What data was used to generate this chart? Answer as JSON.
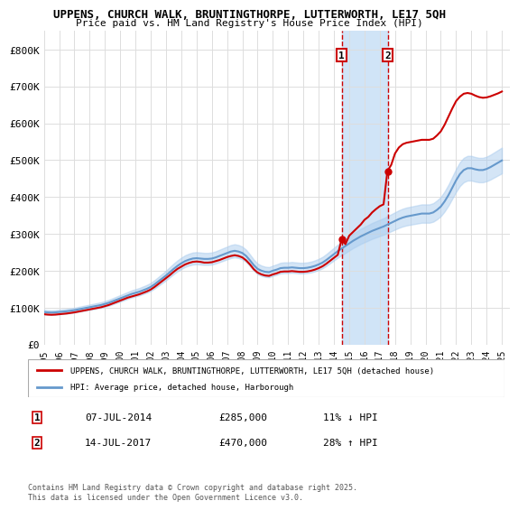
{
  "title_line1": "UPPENS, CHURCH WALK, BRUNTINGTHORPE, LUTTERWORTH, LE17 5QH",
  "title_line2": "Price paid vs. HM Land Registry's House Price Index (HPI)",
  "ylabel_ticks": [
    "£0",
    "£100K",
    "£200K",
    "£300K",
    "£400K",
    "£500K",
    "£600K",
    "£700K",
    "£800K"
  ],
  "ytick_values": [
    0,
    100000,
    200000,
    300000,
    400000,
    500000,
    600000,
    700000,
    800000
  ],
  "ylim": [
    0,
    850000
  ],
  "xlim_start": 1995.0,
  "xlim_end": 2025.5,
  "xticks": [
    1995,
    1996,
    1997,
    1998,
    1999,
    2000,
    2001,
    2002,
    2003,
    2004,
    2005,
    2006,
    2007,
    2008,
    2009,
    2010,
    2011,
    2012,
    2013,
    2014,
    2015,
    2016,
    2017,
    2018,
    2019,
    2020,
    2021,
    2022,
    2023,
    2024,
    2025
  ],
  "transaction1_date": "07-JUL-2014",
  "transaction1_x": 2014.52,
  "transaction1_price": 285000,
  "transaction1_hpi": "11% ↓ HPI",
  "transaction2_date": "14-JUL-2017",
  "transaction2_x": 2017.53,
  "transaction2_price": 470000,
  "transaction2_hpi": "28% ↑ HPI",
  "legend_label_red": "UPPENS, CHURCH WALK, BRUNTINGTHORPE, LUTTERWORTH, LE17 5QH (detached house)",
  "legend_label_blue": "HPI: Average price, detached house, Harborough",
  "footnote": "Contains HM Land Registry data © Crown copyright and database right 2025.\nThis data is licensed under the Open Government Licence v3.0.",
  "red_color": "#cc0000",
  "blue_color": "#6699cc",
  "blue_fill_color": "#aaccee",
  "shade_color": "#d0e4f7",
  "background_color": "#ffffff",
  "grid_color": "#dddddd",
  "hpi_data_x": [
    1995.0,
    1995.25,
    1995.5,
    1995.75,
    1996.0,
    1996.25,
    1996.5,
    1996.75,
    1997.0,
    1997.25,
    1997.5,
    1997.75,
    1998.0,
    1998.25,
    1998.5,
    1998.75,
    1999.0,
    1999.25,
    1999.5,
    1999.75,
    2000.0,
    2000.25,
    2000.5,
    2000.75,
    2001.0,
    2001.25,
    2001.5,
    2001.75,
    2002.0,
    2002.25,
    2002.5,
    2002.75,
    2003.0,
    2003.25,
    2003.5,
    2003.75,
    2004.0,
    2004.25,
    2004.5,
    2004.75,
    2005.0,
    2005.25,
    2005.5,
    2005.75,
    2006.0,
    2006.25,
    2006.5,
    2006.75,
    2007.0,
    2007.25,
    2007.5,
    2007.75,
    2008.0,
    2008.25,
    2008.5,
    2008.75,
    2009.0,
    2009.25,
    2009.5,
    2009.75,
    2010.0,
    2010.25,
    2010.5,
    2010.75,
    2011.0,
    2011.25,
    2011.5,
    2011.75,
    2012.0,
    2012.25,
    2012.5,
    2012.75,
    2013.0,
    2013.25,
    2013.5,
    2013.75,
    2014.0,
    2014.25,
    2014.5,
    2014.75,
    2015.0,
    2015.25,
    2015.5,
    2015.75,
    2016.0,
    2016.25,
    2016.5,
    2016.75,
    2017.0,
    2017.25,
    2017.5,
    2017.75,
    2018.0,
    2018.25,
    2018.5,
    2018.75,
    2019.0,
    2019.25,
    2019.5,
    2019.75,
    2020.0,
    2020.25,
    2020.5,
    2020.75,
    2021.0,
    2021.25,
    2021.5,
    2021.75,
    2022.0,
    2022.25,
    2022.5,
    2022.75,
    2023.0,
    2023.25,
    2023.5,
    2023.75,
    2024.0,
    2024.25,
    2024.5,
    2024.75,
    2025.0
  ],
  "hpi_data_y": [
    88000,
    87000,
    86500,
    87000,
    88000,
    89000,
    90000,
    91500,
    93000,
    95000,
    97000,
    99000,
    101000,
    103000,
    105000,
    107000,
    110000,
    113000,
    117000,
    121000,
    125000,
    129000,
    133000,
    137000,
    140000,
    143000,
    147000,
    151000,
    156000,
    163000,
    171000,
    179000,
    187000,
    196000,
    205000,
    213000,
    220000,
    226000,
    230000,
    233000,
    234000,
    233000,
    232000,
    232000,
    233000,
    236000,
    240000,
    244000,
    248000,
    252000,
    254000,
    252000,
    248000,
    240000,
    228000,
    215000,
    205000,
    200000,
    197000,
    196000,
    200000,
    203000,
    207000,
    208000,
    208000,
    209000,
    208000,
    207000,
    207000,
    208000,
    210000,
    213000,
    217000,
    222000,
    229000,
    237000,
    245000,
    253000,
    260000,
    267000,
    274000,
    281000,
    287000,
    293000,
    298000,
    303000,
    308000,
    312000,
    316000,
    320000,
    325000,
    330000,
    335000,
    340000,
    344000,
    347000,
    349000,
    351000,
    353000,
    355000,
    355000,
    355000,
    358000,
    365000,
    374000,
    388000,
    405000,
    425000,
    445000,
    462000,
    473000,
    478000,
    478000,
    475000,
    473000,
    473000,
    476000,
    481000,
    487000,
    493000,
    499000
  ],
  "red_data_x": [
    1995.0,
    1995.25,
    1995.5,
    1995.75,
    1996.0,
    1996.25,
    1996.5,
    1996.75,
    1997.0,
    1997.25,
    1997.5,
    1997.75,
    1998.0,
    1998.25,
    1998.5,
    1998.75,
    1999.0,
    1999.25,
    1999.5,
    1999.75,
    2000.0,
    2000.25,
    2000.5,
    2000.75,
    2001.0,
    2001.25,
    2001.5,
    2001.75,
    2002.0,
    2002.25,
    2002.5,
    2002.75,
    2003.0,
    2003.25,
    2003.5,
    2003.75,
    2004.0,
    2004.25,
    2004.5,
    2004.75,
    2005.0,
    2005.25,
    2005.5,
    2005.75,
    2006.0,
    2006.25,
    2006.5,
    2006.75,
    2007.0,
    2007.25,
    2007.5,
    2007.75,
    2008.0,
    2008.25,
    2008.5,
    2008.75,
    2009.0,
    2009.25,
    2009.5,
    2009.75,
    2010.0,
    2010.25,
    2010.5,
    2010.75,
    2011.0,
    2011.25,
    2011.5,
    2011.75,
    2012.0,
    2012.25,
    2012.5,
    2012.75,
    2013.0,
    2013.25,
    2013.5,
    2013.75,
    2014.0,
    2014.25,
    2014.5,
    2014.75,
    2015.0,
    2015.25,
    2015.5,
    2015.75,
    2016.0,
    2016.25,
    2016.5,
    2016.75,
    2017.0,
    2017.25,
    2017.5,
    2017.75,
    2018.0,
    2018.25,
    2018.5,
    2018.75,
    2019.0,
    2019.25,
    2019.5,
    2019.75,
    2020.0,
    2020.25,
    2020.5,
    2020.75,
    2021.0,
    2021.25,
    2021.5,
    2021.75,
    2022.0,
    2022.25,
    2022.5,
    2022.75,
    2023.0,
    2023.25,
    2023.5,
    2023.75,
    2024.0,
    2024.25,
    2024.5,
    2024.75,
    2025.0
  ],
  "red_data_y": [
    82000,
    81000,
    80500,
    81000,
    82000,
    83000,
    84000,
    85500,
    87000,
    89000,
    91000,
    93000,
    95000,
    97000,
    99000,
    101000,
    104000,
    107000,
    111000,
    115000,
    119000,
    123000,
    127000,
    130000,
    133000,
    136000,
    140000,
    144000,
    149000,
    156000,
    164000,
    172000,
    180000,
    188000,
    197000,
    205000,
    211000,
    217000,
    221000,
    224000,
    225000,
    224000,
    222000,
    222000,
    223000,
    226000,
    229000,
    233000,
    237000,
    240000,
    242000,
    240000,
    236000,
    228000,
    217000,
    204000,
    195000,
    190000,
    187000,
    186000,
    190000,
    193000,
    197000,
    198000,
    198000,
    199000,
    198000,
    197000,
    197000,
    198000,
    200000,
    203000,
    207000,
    212000,
    219000,
    227000,
    235000,
    243000,
    285000,
    272000,
    295000,
    305000,
    315000,
    325000,
    338000,
    346000,
    358000,
    367000,
    375000,
    380000,
    470000,
    487000,
    518000,
    534000,
    543000,
    547000,
    549000,
    551000,
    553000,
    555000,
    555000,
    555000,
    558000,
    567000,
    578000,
    596000,
    618000,
    640000,
    660000,
    672000,
    680000,
    682000,
    680000,
    675000,
    671000,
    669000,
    670000,
    673000,
    677000,
    681000,
    686000
  ]
}
